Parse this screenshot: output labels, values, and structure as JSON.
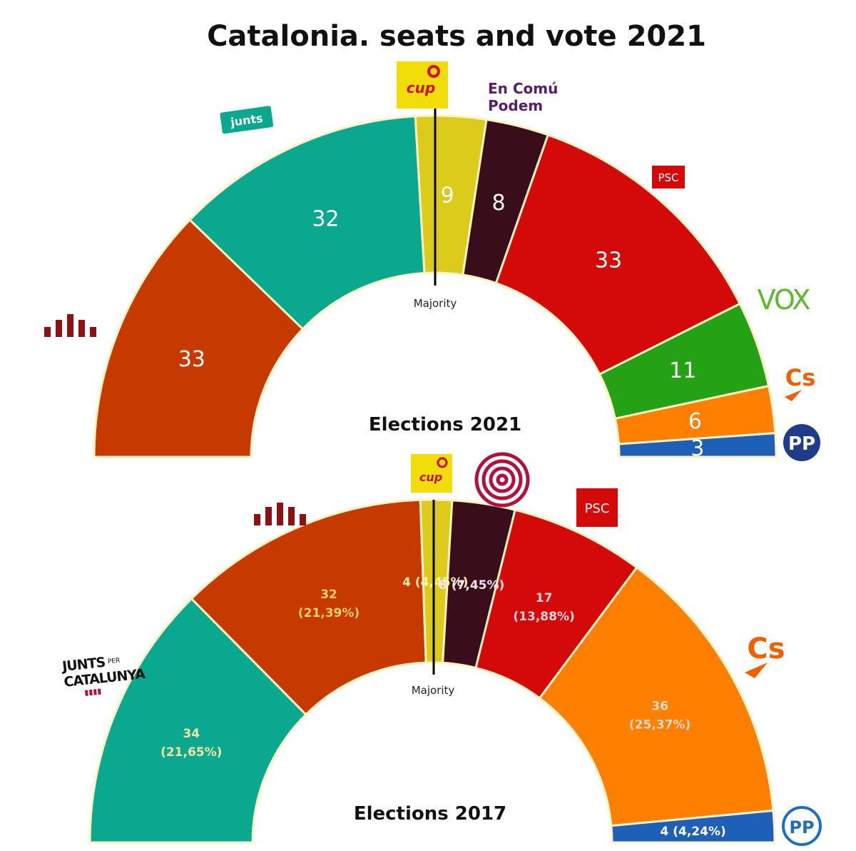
{
  "title": "Catalonia. seats and vote 2021",
  "majority_label": "Majority",
  "colors": {
    "erc": "#c63a00",
    "junts": "#0aa98f",
    "cup": "#dccb1b",
    "comuns": "#3a0d1a",
    "psc": "#d40a0a",
    "vox": "#24a114",
    "cs": "#ff7f00",
    "pp": "#1e5fb8"
  },
  "logos": {
    "junts_2021": "junts",
    "cup_2021": "cup",
    "encomu_line1": "En Comú",
    "encomu_line2": "Podem",
    "psc_2021": "PSC",
    "vox": "VOX",
    "cs_2021": "Cs",
    "pp_2021": "PP",
    "cup_2017": "cup",
    "psc_2017": "PSC",
    "cs_2017": "Cs",
    "jxcat_line1": "JUNTS",
    "jxcat_per": "PER",
    "jxcat_line2": "CATALUNYA",
    "pp_2017": "PP"
  },
  "chart_data": [
    {
      "type": "pie",
      "subtype": "parliament-hemicycle",
      "title": "Elections 2021",
      "categories": [
        "ERC",
        "Junts",
        "CUP",
        "En Comú Podem",
        "PSC",
        "VOX",
        "Cs",
        "PP"
      ],
      "values": [
        33,
        32,
        9,
        8,
        33,
        11,
        6,
        3
      ],
      "labels": [
        "33",
        "32",
        "9",
        "8",
        "33",
        "11",
        "6",
        "3"
      ]
    },
    {
      "type": "pie",
      "subtype": "parliament-hemicycle",
      "title": "Elections 2017",
      "categories": [
        "JuntsxCat",
        "ERC",
        "CUP",
        "CatComú-Podem",
        "PSC",
        "Cs",
        "PP"
      ],
      "values": [
        34,
        32,
        4,
        8,
        17,
        36,
        4
      ],
      "vote_share": [
        "21,65%",
        "21,39%",
        "4,45%",
        "7,45%",
        "13,88%",
        "25,37%",
        "4,24%"
      ],
      "labels": [
        "34\n(21,65%)",
        "32\n(21,39%)",
        "4 (4,45%)",
        "8 (7,45%)",
        "17\n(13,88%)",
        "36\n(25,37%)",
        "4 (4,24%)"
      ]
    }
  ]
}
